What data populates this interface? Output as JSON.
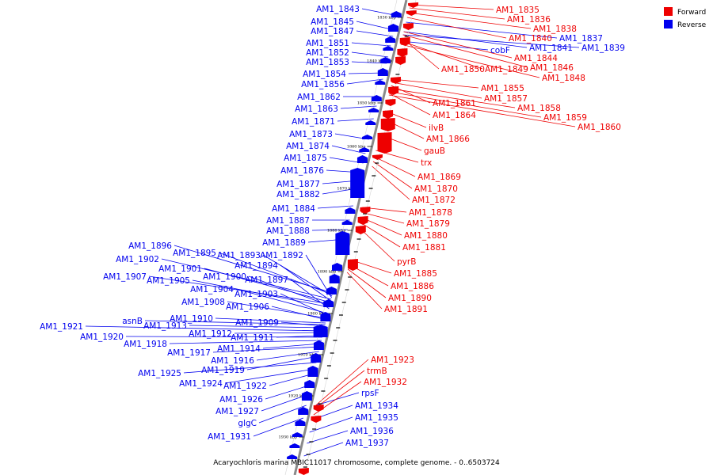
{
  "caption": "Acaryochloris marina MBIC11017 chromosome, complete genome. - 0..6503724",
  "legend": [
    {
      "label": "Forward",
      "color": "#ee0000"
    },
    {
      "label": "Reverse",
      "color": "#0000ee"
    }
  ],
  "colors": {
    "forward": "#ee0000",
    "reverse": "#0000ee",
    "axis": "#888888"
  },
  "axis_ticks": [
    "1830 kbp",
    "1840 kbp",
    "1850 kbp",
    "1860 kbp",
    "1870 kbp",
    "1880 kbp",
    "1890 kbp",
    "1900 kbp",
    "1910 kbp",
    "1920 kbp",
    "1930 kbp"
  ],
  "reverse_genes": [
    "AM1_1843",
    "AM1_1845",
    "AM1_1847",
    "AM1_1851",
    "AM1_1852",
    "AM1_1853",
    "AM1_1854",
    "AM1_1856",
    "AM1_1862",
    "AM1_1863",
    "AM1_1871",
    "AM1_1873",
    "AM1_1874",
    "AM1_1875",
    "AM1_1876",
    "AM1_1877",
    "AM1_1882",
    "AM1_1884",
    "AM1_1887",
    "AM1_1888",
    "AM1_1889",
    "AM1_1896",
    "AM1_1895",
    "AM1_1893",
    "AM1_1892",
    "AM1_1902",
    "AM1_1894",
    "AM1_1901",
    "AM1_1907",
    "AM1_1900",
    "AM1_1905",
    "AM1_1897",
    "AM1_1904",
    "AM1_1903",
    "AM1_1908",
    "AM1_1906",
    "AM1_1910",
    "asnB",
    "AM1_1909",
    "AM1_1913",
    "AM1_1921",
    "AM1_1912",
    "AM1_1911",
    "AM1_1920",
    "AM1_1918",
    "AM1_1914",
    "AM1_1917",
    "AM1_1916",
    "AM1_1919",
    "AM1_1925",
    "AM1_1924",
    "AM1_1922",
    "AM1_1926",
    "AM1_1927",
    "glgC",
    "AM1_1931",
    "AM1_1837",
    "AM1_1841",
    "AM1_1839",
    "cobF",
    "rpsF",
    "AM1_1934",
    "AM1_1935",
    "AM1_1936",
    "AM1_1937"
  ],
  "forward_genes": [
    "AM1_1835",
    "AM1_1836",
    "AM1_1838",
    "AM1_1840",
    "AM1_1844",
    "AM1_1846",
    "AM1_1850",
    "AM1_1849",
    "AM1_1848",
    "AM1_1855",
    "AM1_1857",
    "AM1_1861",
    "AM1_1858",
    "AM1_1864",
    "AM1_1859",
    "AM1_1860",
    "ilvB",
    "AM1_1866",
    "gauB",
    "trx",
    "AM1_1869",
    "AM1_1870",
    "AM1_1872",
    "AM1_1878",
    "AM1_1879",
    "AM1_1880",
    "AM1_1881",
    "pyrB",
    "AM1_1885",
    "AM1_1886",
    "AM1_1890",
    "AM1_1891",
    "AM1_1923",
    "trmB",
    "AM1_1932"
  ]
}
